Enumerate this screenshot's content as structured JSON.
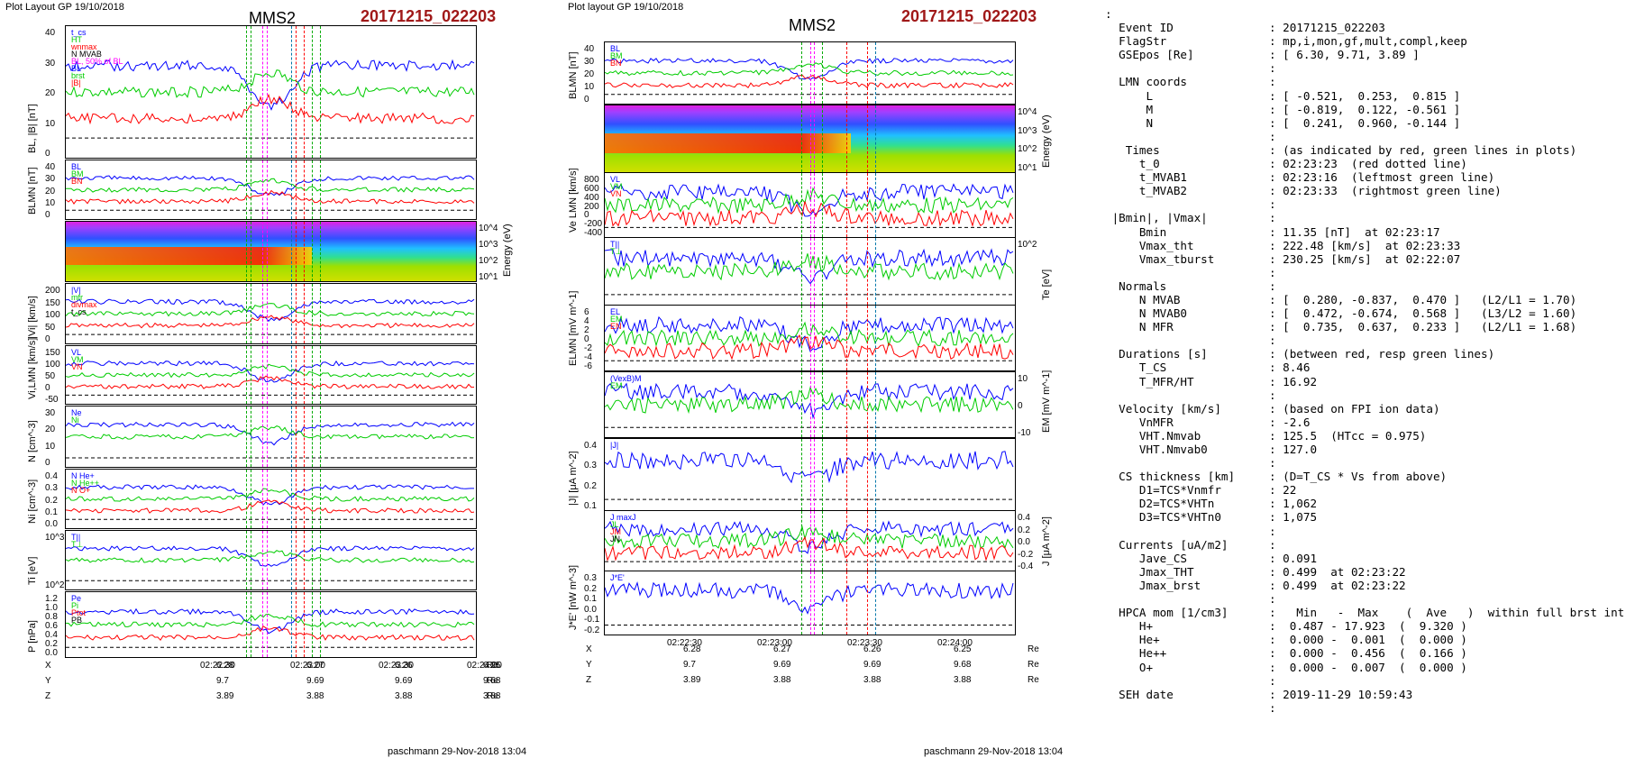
{
  "left": {
    "header": {
      "layout": "Plot Layout GP 19/10/2018",
      "spacecraft": "MMS2",
      "event": "20171215_022203"
    },
    "panels": [
      {
        "ylabel": "BL, |B| [nT]",
        "ticks": [
          "40",
          "30",
          "20",
          "10",
          "0"
        ],
        "legend": [
          "t_cs",
          "HT",
          "wnmax",
          "N MVAB",
          "BL, 50% of BL",
          "BL",
          "brst",
          "|B|"
        ]
      },
      {
        "ylabel": "BLMN [nT]",
        "ticks": [
          "40",
          "30",
          "20",
          "10",
          "0"
        ],
        "legend": [
          "BL",
          "BM",
          "BN"
        ]
      },
      {
        "ylabel": "Energy (eV)",
        "ticks": [
          "10^4",
          "10^3",
          "10^2",
          "10^1"
        ],
        "legend": []
      },
      {
        "ylabel": "|Vi| [km/s]",
        "ticks": [
          "200",
          "150",
          "100",
          "50",
          "0"
        ],
        "legend": [
          "|V|",
          "mfr",
          "divmax",
          "t_cs"
        ]
      },
      {
        "ylabel": "Vi,LMN [km/s]",
        "ticks": [
          "150",
          "100",
          "50",
          "0",
          "-50"
        ],
        "legend": [
          "VL",
          "VM",
          "VN"
        ]
      },
      {
        "ylabel": "N [cm^-3]",
        "ticks": [
          "30",
          "20",
          "10",
          "0"
        ],
        "legend": [
          "Ne",
          "Ni"
        ]
      },
      {
        "ylabel": "Ni [cm^-3]",
        "ticks": [
          "0.4",
          "0.3",
          "0.2",
          "0.1",
          "0.0"
        ],
        "legend": [
          "N He+",
          "N He++",
          "N O+"
        ]
      },
      {
        "ylabel": "Ti [eV]",
        "ticks": [
          "10^3",
          "10^2"
        ],
        "legend": [
          "T||",
          "T⊥"
        ]
      },
      {
        "ylabel": "P [nPa]",
        "ticks": [
          "1.2",
          "1.0",
          "0.8",
          "0.6",
          "0.4",
          "0.2",
          "0.0"
        ],
        "legend": [
          "Pe",
          "Pi",
          "Ptot",
          "PB"
        ]
      }
    ],
    "time_ticks": [
      "02:22:30",
      "02:23:00",
      "02:23:30",
      "02:24:00"
    ],
    "pos_rows": [
      {
        "label": "X",
        "values": [
          "6.28",
          "6.27",
          "6.26",
          "6.25"
        ],
        "unit": "Re"
      },
      {
        "label": "Y",
        "values": [
          "9.7",
          "9.69",
          "9.69",
          "9.68"
        ],
        "unit": "Re"
      },
      {
        "label": "Z",
        "values": [
          "3.89",
          "3.88",
          "3.88",
          "3.88"
        ],
        "unit": "Re"
      }
    ],
    "footer": "paschmann 29-Nov-2018 13:04"
  },
  "middle": {
    "header": {
      "layout": "Plot layout GP 19/10/2018",
      "spacecraft": "MMS2",
      "event": "20171215_022203"
    },
    "panels": [
      {
        "ylabel": "BLMN [nT]",
        "ticks": [
          "40",
          "30",
          "20",
          "10",
          "0"
        ],
        "legend": [
          "BL",
          "BM",
          "BN"
        ]
      },
      {
        "ylabel": "Energy (eV)",
        "ticks": [
          "10^4",
          "10^3",
          "10^2",
          "10^1"
        ],
        "legend": []
      },
      {
        "ylabel": "Ve LMN [km/s]",
        "ticks": [
          "800",
          "600",
          "400",
          "200",
          "0",
          "-200",
          "-400"
        ],
        "legend": [
          "VL",
          "VM",
          "VN"
        ]
      },
      {
        "ylabel": "Te [eV]",
        "ticks": [
          "10^2"
        ],
        "legend": [
          "T||",
          "T⊥"
        ]
      },
      {
        "ylabel": "ELMN [mV m^-1]",
        "ticks": [
          "6",
          "4",
          "2",
          "0",
          "-2",
          "-4",
          "-6"
        ],
        "legend": [
          "EL",
          "EM",
          "EN"
        ]
      },
      {
        "ylabel": "EM [mV m^-1]",
        "ticks": [
          "10",
          "0",
          "-10"
        ],
        "legend": [
          "(VexB)M",
          "EM"
        ]
      },
      {
        "ylabel": "|J| [μA m^-2]",
        "ticks": [
          "0.4",
          "0.3",
          "0.2",
          "0.1"
        ],
        "legend": [
          "|J|"
        ]
      },
      {
        "ylabel": "J [μA m^-2]",
        "ticks": [
          "0.4",
          "0.2",
          "0.0",
          "-0.2",
          "-0.4"
        ],
        "legend": [
          "J maxJ",
          "JL",
          "JM",
          "JN"
        ]
      },
      {
        "ylabel": "J*E' [nW m^-3]",
        "ticks": [
          "0.3",
          "0.2",
          "0.1",
          "0.0",
          "-0.1",
          "-0.2"
        ],
        "legend": [
          "J*E'"
        ]
      }
    ],
    "time_ticks": [
      "02:22:30",
      "02:23:00",
      "02:23:30",
      "02:24:00"
    ],
    "pos_rows": [
      {
        "label": "X",
        "values": [
          "6.28",
          "6.27",
          "6.26",
          "6.25"
        ],
        "unit": "Re"
      },
      {
        "label": "Y",
        "values": [
          "9.7",
          "9.69",
          "9.69",
          "9.68"
        ],
        "unit": "Re"
      },
      {
        "label": "Z",
        "values": [
          "3.89",
          "3.88",
          "3.88",
          "3.88"
        ],
        "unit": "Re"
      }
    ],
    "footer": "paschmann 29-Nov-2018 13:04"
  },
  "info_text": ":\n  Event ID              : 20171215_022203\n  FlagStr               : mp,i,mon,gf,mult,compl,keep\n  GSEpos [Re]           : [ 6.30, 9.71, 3.89 ]\n                        :\n  LMN coords            :\n      L                 : [ -0.521,  0.253,  0.815 ]\n      M                 : [ -0.819,  0.122, -0.561 ]\n      N                 : [  0.241,  0.960, -0.144 ]\n                        :\n   Times                : (as indicated by red, green lines in plots)\n     t_0                : 02:23:23  (red dotted line)\n     t_MVAB1            : 02:23:16  (leftmost green line)\n     t_MVAB2            : 02:23:33  (rightmost green line)\n                        :\n |Bmin|, |Vmax|         :\n     Bmin               : 11.35 [nT]  at 02:23:17\n     Vmax_tht           : 222.48 [km/s]  at 02:23:33\n     Vmax_tburst        : 230.25 [km/s]  at 02:22:07\n                        :\n  Normals               :\n     N MVAB             : [  0.280, -0.837,  0.470 ]   (L2/L1 = 1.70)\n     N MVAB0            : [  0.472, -0.674,  0.568 ]   (L3/L2 = 1.60)\n     N MFR              : [  0.735,  0.637,  0.233 ]   (L2/L1 = 1.68)\n                        :\n  Durations [s]         : (between red, resp green lines)\n     T_CS               : 8.46\n     T_MFR/HT           : 16.92\n                        :\n  Velocity [km/s]       : (based on FPI ion data)\n     VnMFR              : -2.6\n     VHT.Nmvab          : 125.5  (HTcc = 0.975)\n     VHT.Nmvab0         : 127.0\n                        :\n  CS thickness [km]     : (D=T_CS * Vs from above)\n     D1=TCS*Vnmfr       : 22\n     D2=TCS*VHTn        : 1,062\n     D3=TCS*VHTn0       : 1,075\n                        :\n  Currents [uA/m2]      :\n     Jave_CS            : 0.091\n     Jmax_THT           : 0.499  at 02:23:22\n     Jmax_brst          : 0.499  at 02:23:22\n                        :\n  HPCA mom [1/cm3]      :   Min   -  Max    (  Ave   )  within full brst int\n     H+                 :  0.487 - 17.923  (  9.320 )\n     He+                :  0.000 -  0.001  (  0.000 )\n     He++               :  0.000 -  0.456  (  0.166 )\n     O+                 :  0.000 -  0.007  (  0.000 )\n                        :\n  SEH date              : 2019-11-29 10:59:43\n                        :",
  "colors": {
    "blue": "#0000ff",
    "red": "#ff0000",
    "green": "#00cc00",
    "black": "#000000",
    "magenta": "#ff00ff",
    "title_red": "#a01818"
  }
}
